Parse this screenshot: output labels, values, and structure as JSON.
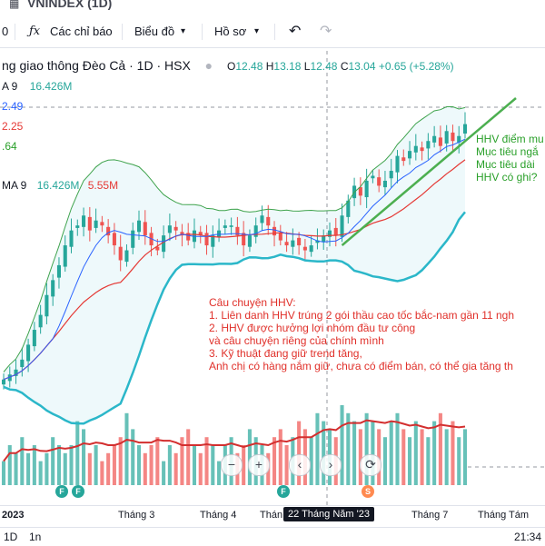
{
  "header": {
    "symbol_title": "VNINDEX (1D)"
  },
  "toolbar": {
    "symbol_fragment": "0",
    "indicators_label": "Các chỉ báo",
    "chart_type_label": "Biểu đồ",
    "profile_label": "Hồ sơ"
  },
  "legend": {
    "instrument": "ng giao thông Đèo Cả · 1D · HSX",
    "ohlc": {
      "o_label": "O",
      "o": "12.48",
      "h_label": "H",
      "h": "13.18",
      "l_label": "L",
      "l": "12.48",
      "c_label": "C",
      "c": "13.04",
      "change": "+0.65 (+5.28%)"
    },
    "ma_line": {
      "name": "A 9",
      "value": "16.426M"
    },
    "bb_upper": "2.49",
    "bb_mid": "2.25",
    "bb_lower": ".64",
    "volume_line": {
      "name": "MA 9",
      "value1": "16.426M",
      "value2": "5.55M"
    }
  },
  "annotations": {
    "green": [
      "HHV điểm mu",
      "Mục tiêu ngắ",
      "Mục tiêu dài",
      "HHV có ghi?"
    ],
    "red": [
      "Câu chuyện HHV:",
      "1. Liên danh HHV trúng 2 gói thầu cao tốc bắc-nam gần 11 ngh",
      "2. HHV  được hưởng lợi nhóm đầu tư công",
      "và câu chuyện riêng của chính mình",
      "3. Kỹ thuật đang giữ trend tăng,",
      "Anh chị có hàng nắm giữ, chưa có điểm bán, có thể gia tăng th"
    ]
  },
  "x_axis": {
    "labels": [
      "2023",
      "Tháng 3",
      "Tháng 4",
      "Thán",
      "Tháng 7",
      "Tháng Tám"
    ],
    "crosshair_date": "22 Tháng Năm '23"
  },
  "markers": [
    "F",
    "F",
    "F",
    "S"
  ],
  "bottom": {
    "range1": "1D",
    "range2": "1n",
    "time": "21:34"
  },
  "colors": {
    "up": "#26a69a",
    "down": "#ef5350",
    "bb_band": "#2bb7c9",
    "bb_upper": "#3fa34d",
    "ma_fast": "#2962ff",
    "ma_slow": "#e53935",
    "trendline": "#4caf50",
    "annotation_red": "#e0302a",
    "annotation_green": "#2aa02a",
    "vol_ma": "#d32f2f"
  },
  "chart_data": {
    "type": "candlestick",
    "symbol": "HHV",
    "interval": "1D",
    "last": {
      "open": 12.48,
      "high": 13.18,
      "low": 12.48,
      "close": 13.04,
      "change": 0.65,
      "change_pct": 5.28
    },
    "price_series_close": [
      7.9,
      8.0,
      8.1,
      8.3,
      8.6,
      8.9,
      9.2,
      9.6,
      9.9,
      10.2,
      10.6,
      10.9,
      11.0,
      11.2,
      10.9,
      11.1,
      11.0,
      10.8,
      10.6,
      10.3,
      10.5,
      10.9,
      11.1,
      10.8,
      10.6,
      10.5,
      10.8,
      11.0,
      10.9,
      10.8,
      10.7,
      10.9,
      10.8,
      10.6,
      10.8,
      10.9,
      11.0,
      11.0,
      10.8,
      10.6,
      10.8,
      11.0,
      11.2,
      11.0,
      10.8,
      10.7,
      10.6,
      10.7,
      10.6,
      10.5,
      10.6,
      10.7,
      10.8,
      10.9,
      10.8,
      11.2,
      11.5,
      11.8,
      11.6,
      11.9,
      12.0,
      11.8,
      11.9,
      12.1,
      12.4,
      12.3,
      12.5,
      12.6,
      12.5,
      12.7,
      12.8,
      12.6,
      12.9,
      12.7,
      12.8,
      13.04
    ],
    "volume_relative": [
      0.3,
      0.5,
      0.4,
      0.6,
      0.4,
      0.5,
      0.3,
      0.4,
      0.6,
      0.5,
      0.4,
      0.5,
      0.8,
      0.7,
      0.4,
      0.5,
      0.3,
      0.4,
      0.5,
      0.6,
      0.9,
      0.7,
      0.5,
      0.4,
      0.5,
      0.6,
      0.3,
      0.5,
      0.4,
      0.6,
      0.7,
      0.5,
      0.4,
      0.6,
      0.5,
      0.3,
      0.5,
      0.6,
      0.4,
      0.5,
      0.7,
      0.6,
      0.5,
      0.4,
      0.6,
      0.7,
      0.5,
      0.6,
      0.8,
      0.7,
      0.6,
      0.9,
      0.8,
      0.7,
      0.6,
      1.0,
      0.9,
      0.8,
      0.7,
      0.9,
      0.8,
      0.7,
      0.6,
      0.8,
      0.9,
      0.7,
      0.6,
      0.8,
      0.7,
      0.6,
      0.8,
      0.9,
      0.7,
      0.8,
      0.6,
      0.7
    ]
  }
}
